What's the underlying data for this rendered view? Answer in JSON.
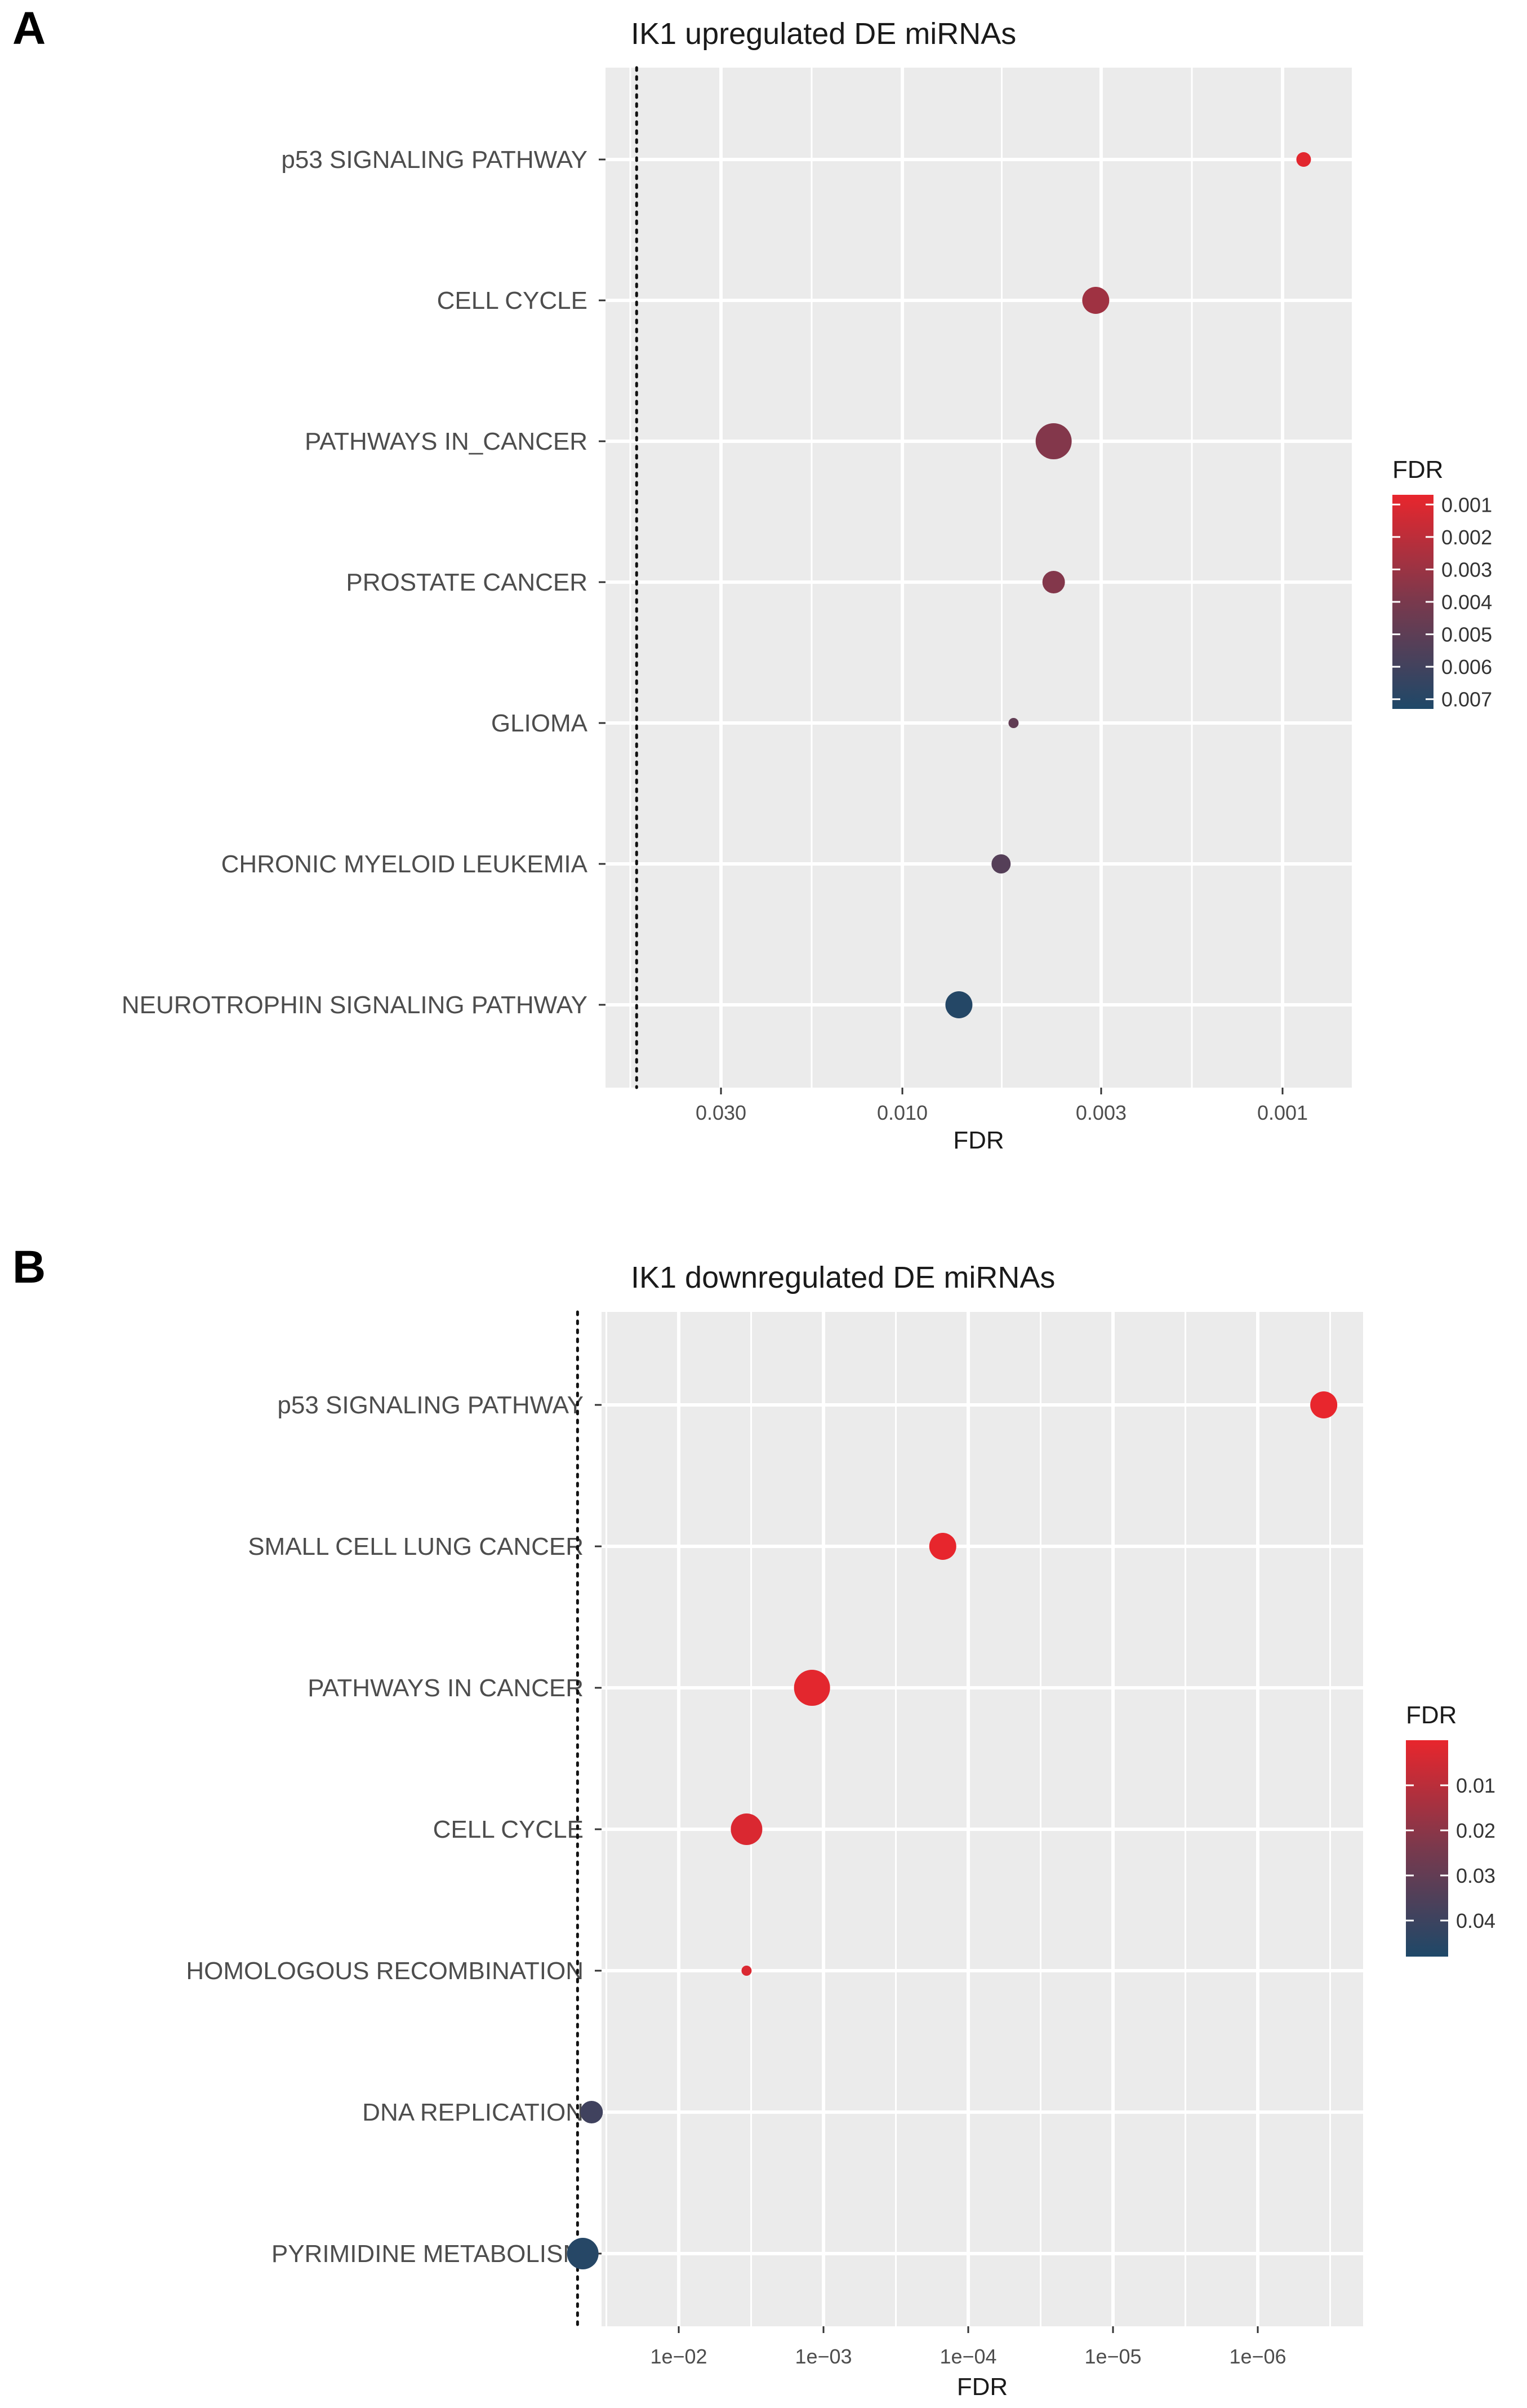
{
  "chart_data": [
    {
      "type": "scatter",
      "panel_label": "A",
      "title": "IK1 upregulated DE miRNAs",
      "xlabel": "FDR",
      "ylabel": "",
      "x_scale": "log10-reversed",
      "x_ticks": [
        {
          "value": 0.03,
          "label": "0.030"
        },
        {
          "value": 0.01,
          "label": "0.010"
        },
        {
          "value": 0.003,
          "label": "0.003"
        },
        {
          "value": 0.001,
          "label": "0.001"
        }
      ],
      "threshold_line": 0.05,
      "categories": [
        "p53 SIGNALING PATHWAY",
        "CELL CYCLE",
        "PATHWAYS IN_CANCER",
        "PROSTATE CANCER",
        "GLIOMA",
        "CHRONIC MYELOID LEUKEMIA",
        "NEUROTROPHIN SIGNALING PATHWAY"
      ],
      "points": [
        {
          "category": "p53 SIGNALING PATHWAY",
          "fdr": 0.00088,
          "size": 1
        },
        {
          "category": "CELL CYCLE",
          "fdr": 0.0031,
          "size": 3
        },
        {
          "category": "PATHWAYS IN_CANCER",
          "fdr": 0.004,
          "size": 5
        },
        {
          "category": "PROSTATE CANCER",
          "fdr": 0.004,
          "size": 2
        },
        {
          "category": "GLIOMA",
          "fdr": 0.0051,
          "size": 0.5
        },
        {
          "category": "CHRONIC MYELOID LEUKEMIA",
          "fdr": 0.0055,
          "size": 1.5
        },
        {
          "category": "NEUROTROPHIN SIGNALING PATHWAY",
          "fdr": 0.0071,
          "size": 3
        }
      ],
      "legend": {
        "title": "FDR",
        "labels": [
          "0.001",
          "0.002",
          "0.003",
          "0.004",
          "0.005",
          "0.006",
          "0.007"
        ],
        "values": [
          0.001,
          0.002,
          0.003,
          0.004,
          0.005,
          0.006,
          0.007
        ],
        "range": [
          0.0007,
          0.0073
        ],
        "low_color": "#e8262d",
        "high_color": "#1e4868"
      }
    },
    {
      "type": "scatter",
      "panel_label": "B",
      "title": "IK1 downregulated DE miRNAs",
      "xlabel": "FDR",
      "ylabel": "",
      "x_scale": "log10-reversed",
      "x_ticks": [
        {
          "value": 0.01,
          "label": "1e−02"
        },
        {
          "value": 0.001,
          "label": "1e−03"
        },
        {
          "value": 0.0001,
          "label": "1e−04"
        },
        {
          "value": 1e-05,
          "label": "1e−05"
        },
        {
          "value": 1e-06,
          "label": "1e−06"
        }
      ],
      "threshold_line": 0.05,
      "categories": [
        "p53 SIGNALING PATHWAY",
        "SMALL CELL LUNG CANCER",
        "PATHWAYS IN CANCER",
        "CELL CYCLE",
        "HOMOLOGOUS RECOMBINATION",
        "DNA REPLICATION",
        "PYRIMIDINE METABOLISM"
      ],
      "points": [
        {
          "category": "p53 SIGNALING PATHWAY",
          "fdr": 3.5e-07,
          "size": 3
        },
        {
          "category": "SMALL CELL LUNG CANCER",
          "fdr": 0.00015,
          "size": 3
        },
        {
          "category": "PATHWAYS IN CANCER",
          "fdr": 0.0012,
          "size": 5
        },
        {
          "category": "CELL CYCLE",
          "fdr": 0.0034,
          "size": 4
        },
        {
          "category": "HOMOLOGOUS RECOMBINATION",
          "fdr": 0.0034,
          "size": 0.5
        },
        {
          "category": "DNA REPLICATION",
          "fdr": 0.04,
          "size": 2
        },
        {
          "category": "PYRIMIDINE METABOLISM",
          "fdr": 0.046,
          "size": 4
        }
      ],
      "legend": {
        "title": "FDR",
        "labels": [
          "0.01",
          "0.02",
          "0.03",
          "0.04"
        ],
        "values": [
          0.01,
          0.02,
          0.03,
          0.04
        ],
        "range": [
          0.0,
          0.048
        ],
        "low_color": "#e8262d",
        "high_color": "#1e4868"
      }
    }
  ]
}
